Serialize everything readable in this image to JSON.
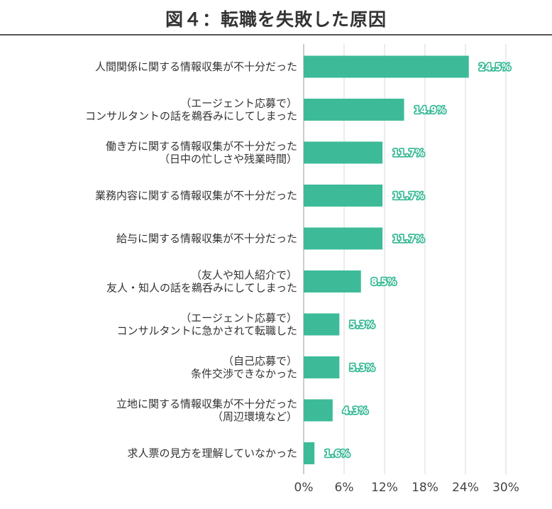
{
  "title": "図４：転職を失敗した原因",
  "chart_data": {
    "type": "bar",
    "orientation": "horizontal",
    "categories": [
      [
        "人間関係に関する情報収集が不十分だった"
      ],
      [
        "（エージェント応募で）",
        "コンサルタントの話を鵜呑みにしてしまった"
      ],
      [
        "働き方に関する情報収集が不十分だった",
        "（日中の忙しさや残業時間）"
      ],
      [
        "業務内容に関する情報収集が不十分だった"
      ],
      [
        "給与に関する情報収集が不十分だった"
      ],
      [
        "（友人や知人紹介で）",
        "友人・知人の話を鵜呑みにしてしまった"
      ],
      [
        "（エージェント応募で）",
        "コンサルタントに急かされて転職した"
      ],
      [
        "（自己応募で）",
        "条件交渉できなかった"
      ],
      [
        "立地に関する情報収集が不十分だった",
        "（周辺環境など）"
      ],
      [
        "求人票の見方を理解していなかった"
      ]
    ],
    "values": [
      24.5,
      14.9,
      11.7,
      11.7,
      11.7,
      8.5,
      5.3,
      5.3,
      4.3,
      1.6
    ],
    "value_labels": [
      "24.5%",
      "14.9%",
      "11.7%",
      "11.7%",
      "11.7%",
      "8.5%",
      "5.3%",
      "5.3%",
      "4.3%",
      "1.6%"
    ],
    "xlim": [
      0,
      30
    ],
    "xticks": [
      0,
      6,
      12,
      18,
      24,
      30
    ],
    "xtick_labels": [
      "0%",
      "6%",
      "12%",
      "18%",
      "24%",
      "30%"
    ],
    "grid": true,
    "bar_color": "#3dbb98"
  }
}
